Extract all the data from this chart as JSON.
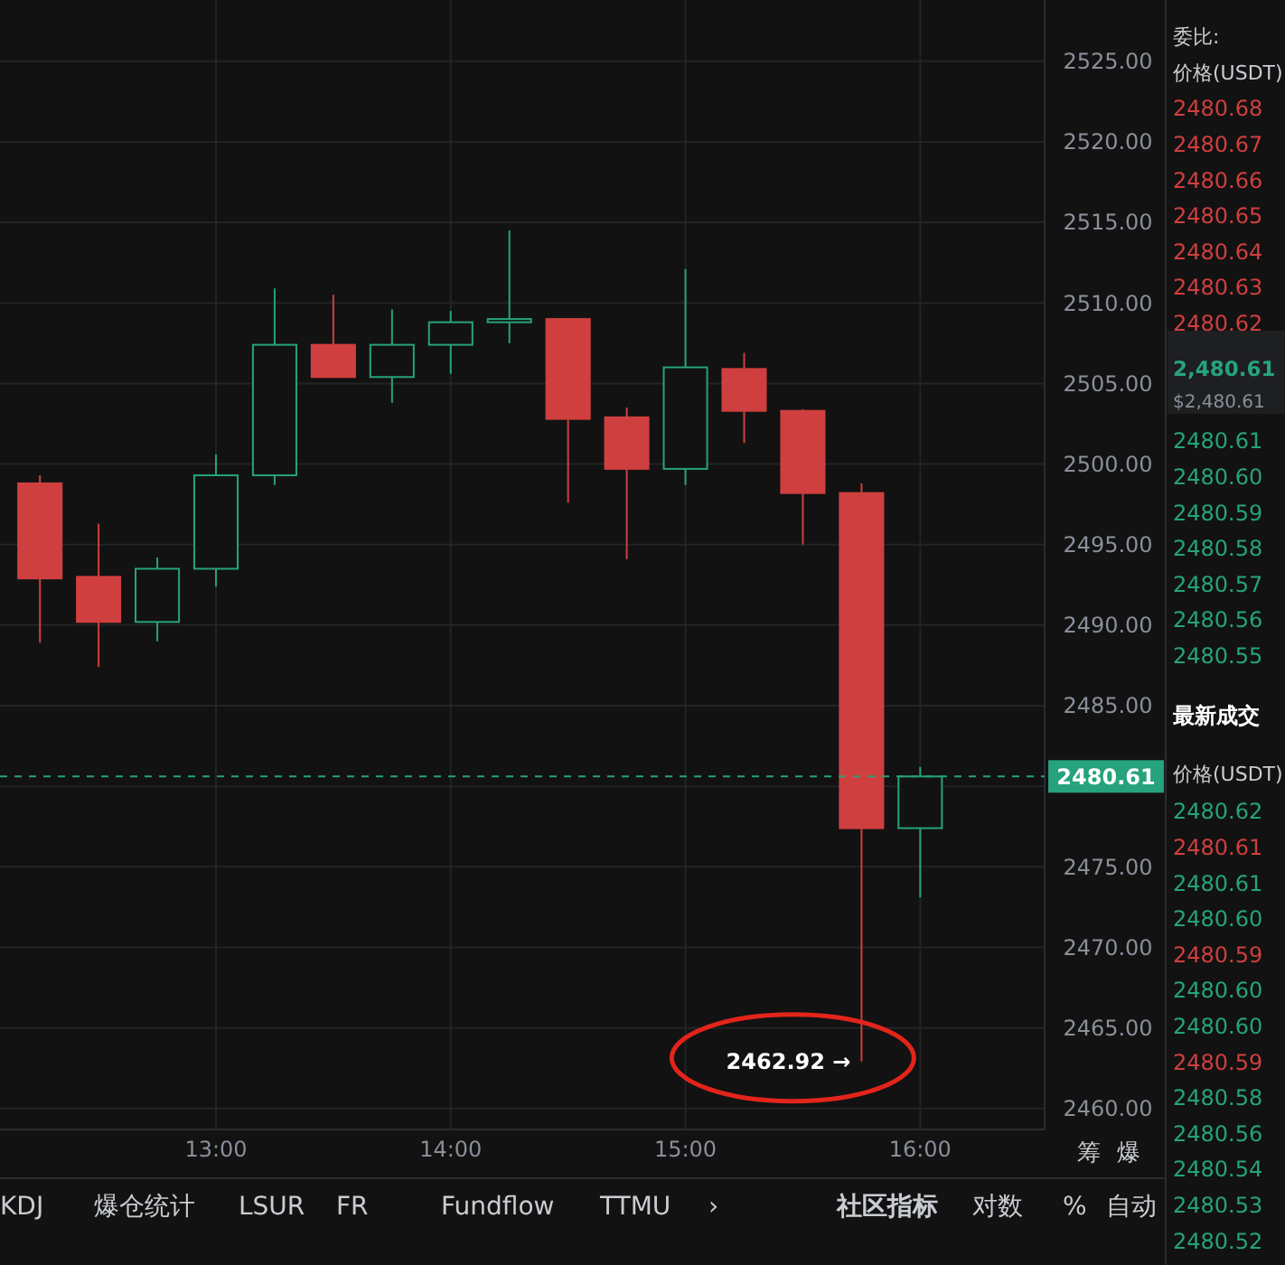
{
  "chart_data": {
    "type": "candlestick",
    "x": [
      12.25,
      12.5,
      12.75,
      13,
      13.25,
      13.5,
      13.75,
      14,
      14.25,
      14.5,
      14.75,
      15,
      15.25,
      15.5,
      15.75,
      16
    ],
    "ohlc": [
      [
        2498.8,
        2499.3,
        2488.9,
        2492.9
      ],
      [
        2493.0,
        2496.3,
        2487.4,
        2490.2
      ],
      [
        2490.2,
        2494.2,
        2489.0,
        2493.5
      ],
      [
        2493.5,
        2500.6,
        2492.4,
        2499.3
      ],
      [
        2499.3,
        2510.9,
        2498.7,
        2507.4
      ],
      [
        2507.4,
        2510.5,
        2505.4,
        2505.4
      ],
      [
        2505.4,
        2509.6,
        2503.8,
        2507.4
      ],
      [
        2507.4,
        2509.5,
        2505.6,
        2508.8
      ],
      [
        2508.8,
        2514.5,
        2507.5,
        2509.0
      ],
      [
        2509.0,
        2509.0,
        2497.6,
        2502.8
      ],
      [
        2502.9,
        2503.5,
        2494.1,
        2499.7
      ],
      [
        2499.7,
        2512.1,
        2498.7,
        2506.0
      ],
      [
        2505.9,
        2506.9,
        2501.3,
        2503.3
      ],
      [
        2503.3,
        2503.4,
        2495.0,
        2498.2
      ],
      [
        2498.2,
        2498.8,
        2462.92,
        2477.4
      ],
      [
        2477.4,
        2481.2,
        2473.1,
        2480.61
      ]
    ],
    "colors": [
      "#d03f3f",
      "#d03f3f",
      "#26a37c",
      "#26a37c",
      "#26a37c",
      "#d03f3f",
      "#26a37c",
      "#26a37c",
      "#26a37c",
      "#d03f3f",
      "#d03f3f",
      "#26a37c",
      "#d03f3f",
      "#d03f3f",
      "#d03f3f",
      "#26a37c"
    ],
    "xlim": [
      12.08,
      16.53
    ],
    "ylim": [
      2458.7,
      2528.8
    ],
    "xticks": [
      {
        "value": 13,
        "label": "13:00"
      },
      {
        "value": 14,
        "label": "14:00"
      },
      {
        "value": 15,
        "label": "15:00"
      },
      {
        "value": 16,
        "label": "16:00"
      }
    ],
    "yticks": [
      {
        "value": 2460,
        "label": "2460.00"
      },
      {
        "value": 2465,
        "label": "2465.00"
      },
      {
        "value": 2470,
        "label": "2470.00"
      },
      {
        "value": 2475,
        "label": "2475.00"
      },
      {
        "value": 2480,
        "label": null
      },
      {
        "value": 2485,
        "label": "2485.00"
      },
      {
        "value": 2490,
        "label": "2490.00"
      },
      {
        "value": 2495,
        "label": "2495.00"
      },
      {
        "value": 2500,
        "label": "2500.00"
      },
      {
        "value": 2505,
        "label": "2505.00"
      },
      {
        "value": 2510,
        "label": "2510.00"
      },
      {
        "value": 2515,
        "label": "2515.00"
      },
      {
        "value": 2520,
        "label": "2520.00"
      },
      {
        "value": 2525,
        "label": "2525.00"
      }
    ],
    "grid": true,
    "ref_lines": [
      {
        "axis": "y",
        "value": 2480.61,
        "label": "2480.61",
        "color": "#26a37c",
        "line_style": "dashed"
      }
    ],
    "annotations": [
      {
        "text": "2462.92 →",
        "x": 15.75,
        "y": 2462.92
      },
      "筹",
      "爆",
      "KDJ",
      "爆仓统计",
      "LSUR",
      "FR",
      "Fundflow",
      "TTMU",
      "›",
      "社区指标",
      "对数",
      "%",
      "自动",
      "委比:",
      "价格(USDT)",
      "2480.68",
      "2480.67",
      "2480.66",
      "2480.65",
      "2480.64",
      "2480.63",
      "2480.62",
      "2,480.61",
      "$2,480.61",
      "2480.61",
      "2480.60",
      "2480.59",
      "2480.58",
      "2480.57",
      "2480.56",
      "2480.55",
      "最新成交",
      "价格(USDT)",
      "2480.62",
      "2480.61",
      "2480.61",
      "2480.60",
      "2480.59",
      "2480.60",
      "2480.60",
      "2480.59",
      "2480.58",
      "2480.56",
      "2480.54",
      "2480.53",
      "2480.52"
    ]
  }
}
